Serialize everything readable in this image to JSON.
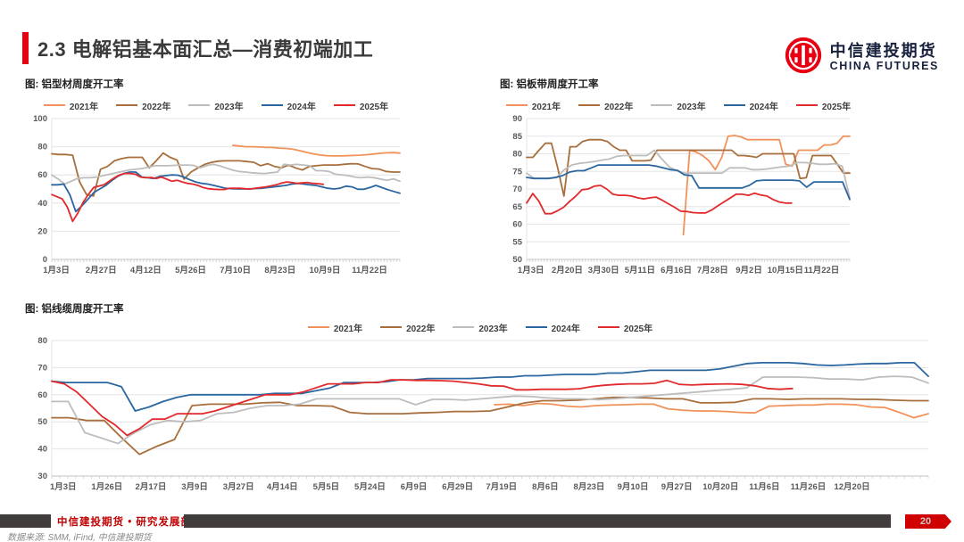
{
  "header": {
    "title": "2.3 电解铝基本面汇总—消费初端加工",
    "logo_cn": "中信建投期货",
    "logo_en": "CHINA FUTURES"
  },
  "footer": {
    "dept": "中信建投期货 • 研究发展部",
    "source": "数据来源: SMM, iFind, 中信建投期货",
    "page": "20"
  },
  "colors": {
    "y2021": "#F0925A",
    "y2022": "#A86E3B",
    "y2023": "#BDBDBD",
    "y2024": "#2A66A0",
    "y2025": "#E2292B",
    "grid": "#E4E4E4",
    "axis": "#C2C2C2",
    "tick": "#C9C9C9",
    "label": "#595959"
  },
  "chart_data": [
    {
      "type": "line",
      "title": "图: 铝型材周度开工率",
      "ylim": [
        0,
        100
      ],
      "y_ticks": [
        0,
        20,
        40,
        60,
        80,
        100
      ],
      "legend_position": "top",
      "x_labels": [
        "1月3日",
        "2月27日",
        "4月12日",
        "5月26日",
        "7月10日",
        "8月23日",
        "10月9日",
        "11月22日"
      ],
      "series": [
        {
          "name": "2021年",
          "color": "y2021",
          "x0": 0.52,
          "x1": 1.0,
          "values": [
            81,
            80.5,
            80,
            80,
            79.8,
            79.5,
            79.5,
            79,
            78.8,
            78.2,
            77.2,
            76,
            75,
            74.2,
            73.7,
            73.5,
            73.5,
            73.6,
            73.8,
            74,
            74.3,
            74.8,
            75.3,
            75.7,
            75.8,
            75.5
          ]
        },
        {
          "name": "2022年",
          "color": "y2022",
          "x0": 0,
          "x1": 1.0,
          "values": [
            75,
            74.5,
            74.5,
            74,
            55,
            46,
            45,
            64,
            66,
            70,
            71.5,
            72.5,
            72.5,
            72.5,
            65,
            70,
            75.5,
            72.5,
            70.5,
            57,
            62,
            65,
            67.5,
            69,
            69.8,
            70,
            70,
            70,
            69.5,
            69,
            66.5,
            68,
            66,
            65,
            67,
            65,
            63.5,
            66,
            66.5,
            67,
            67,
            67,
            67.5,
            68,
            67.8,
            66,
            64.5,
            64.2,
            62.5,
            62,
            62
          ]
        },
        {
          "name": "2023年",
          "color": "y2023",
          "x0": 0,
          "x1": 1.0,
          "values": [
            60,
            57,
            53.5,
            55.5,
            57.5,
            58,
            58,
            58.5,
            59.5,
            60.5,
            61.5,
            62.5,
            63.5,
            64,
            64.5,
            65.5,
            66.5,
            66.5,
            66.5,
            66.8,
            67,
            67,
            66.8,
            65,
            66.5,
            67.5,
            66.5,
            65,
            63.5,
            62.5,
            62,
            61.5,
            61.2,
            61,
            61.5,
            62,
            67.5,
            67,
            67.5,
            67,
            66.5,
            63,
            63,
            62.5,
            60.5,
            60,
            59.5,
            58.5,
            58,
            58.5,
            58,
            57,
            56.2,
            57.2,
            55.5
          ]
        },
        {
          "name": "2024年",
          "color": "y2024",
          "x0": 0,
          "x1": 1.0,
          "values": [
            53,
            53,
            53.5,
            46,
            34,
            38,
            42.5,
            47.5,
            50,
            52.5,
            56,
            59,
            61,
            62,
            62,
            58.5,
            58,
            57.5,
            59,
            59.5,
            60,
            59.8,
            58.5,
            56.5,
            55,
            54,
            53.5,
            52.5,
            51.5,
            50.5,
            50.2,
            50,
            50,
            50,
            50.3,
            50.5,
            51,
            51.5,
            52,
            52.5,
            53.5,
            54,
            53.5,
            53,
            52.5,
            51.5,
            50.5,
            50,
            50.5,
            52,
            51.5,
            49.8,
            49.8,
            51,
            52.5,
            51,
            49.5,
            48.2,
            47
          ]
        },
        {
          "name": "2025年",
          "color": "y2025",
          "x0": 0,
          "x1": 0.78,
          "values": [
            46,
            44.5,
            43,
            37,
            27,
            33,
            40.5,
            46,
            51,
            52,
            53,
            55.5,
            58,
            60,
            61,
            61,
            60.5,
            58.5,
            58,
            58.2,
            57.5,
            58.5,
            57,
            55.5,
            56.2,
            55,
            54,
            53.5,
            52.5,
            51,
            50.2,
            49.8,
            49.6,
            49.6,
            50.5,
            50.6,
            50.5,
            50.2,
            50,
            50.5,
            51,
            51.5,
            52.2,
            53,
            54.2,
            55,
            54.6,
            54,
            54.3,
            54.6,
            54,
            53.8,
            53.3
          ]
        }
      ]
    },
    {
      "type": "line",
      "title": "图: 铝板带周度开工率",
      "ylim": [
        50,
        90
      ],
      "y_ticks": [
        50,
        55,
        60,
        65,
        70,
        75,
        80,
        85,
        90
      ],
      "legend_position": "top",
      "x_labels": [
        "1月3日",
        "2月20日",
        "3月30日",
        "5月11日",
        "6月16日",
        "7月28日",
        "9月2日",
        "10月15日",
        "11月22日"
      ],
      "series": [
        {
          "name": "2021年",
          "color": "y2021",
          "x0": 0.485,
          "x1": 1.0,
          "values": [
            57,
            81,
            80.5,
            79.5,
            78,
            75.5,
            79,
            85,
            85.2,
            84.8,
            84,
            84,
            84,
            84,
            84,
            84,
            77,
            76.5,
            81,
            81,
            81,
            81,
            82.5,
            82.5,
            83,
            85,
            85
          ]
        },
        {
          "name": "2022年",
          "color": "y2022",
          "x0": 0,
          "x1": 1.0,
          "values": [
            79,
            79,
            81,
            83,
            83,
            76,
            68,
            82,
            82,
            83.5,
            84,
            84,
            84,
            83.5,
            82,
            81,
            81,
            78,
            78,
            78,
            78.2,
            81,
            81,
            81,
            81,
            81,
            81,
            81,
            81,
            81,
            81,
            81,
            81,
            81,
            79.5,
            79.5,
            79.3,
            79,
            80,
            80,
            80,
            80,
            80,
            80,
            73,
            73.2,
            79.5,
            79.5,
            79.5,
            79.5,
            77,
            74.5,
            74.5
          ]
        },
        {
          "name": "2023年",
          "color": "y2023",
          "x0": 0,
          "x1": 1.0,
          "values": [
            74.5,
            73,
            73,
            73,
            73.2,
            75.5,
            76.8,
            77.3,
            77.5,
            77.8,
            78.2,
            78.5,
            79.3,
            79.5,
            79.5,
            79.5,
            79.5,
            81,
            78.5,
            76.2,
            75.2,
            74.5,
            74.5,
            74.5,
            74.5,
            74.5,
            74.5,
            76,
            76,
            76,
            75.5,
            75.5,
            75.7,
            76,
            76.3,
            76.5,
            77.5,
            77.5,
            77.3,
            77,
            77,
            77.2,
            76.5,
            67.5
          ]
        },
        {
          "name": "2024年",
          "color": "y2024",
          "x0": 0,
          "x1": 1.0,
          "values": [
            73.3,
            73,
            73,
            73,
            73.3,
            73.8,
            74.8,
            75.2,
            75.2,
            76,
            76.8,
            76.8,
            76.8,
            76.8,
            76.8,
            76.8,
            76.8,
            76.8,
            76.5,
            76,
            75.5,
            75.3,
            74,
            73.8,
            70.3,
            70.3,
            70.3,
            70.3,
            70.3,
            70.3,
            70.3,
            71,
            72.3,
            72.5,
            72.5,
            72.5,
            72.5,
            72.5,
            72.3,
            70.5,
            72,
            72,
            72,
            72,
            72,
            67
          ]
        },
        {
          "name": "2025年",
          "color": "y2025",
          "x0": 0,
          "x1": 0.82,
          "values": [
            66,
            68.7,
            66.5,
            63,
            63,
            63.8,
            64.8,
            66.5,
            68,
            69.8,
            70,
            70.8,
            71,
            70,
            68.5,
            68.2,
            68.2,
            68,
            67.5,
            67.2,
            67.5,
            67.7,
            66.8,
            65.8,
            64.8,
            63.7,
            63.6,
            63.3,
            63.2,
            63.2,
            64,
            65.2,
            66.3,
            67.4,
            68.5,
            68.5,
            68.2,
            68.8,
            68.3,
            68,
            67,
            66.3,
            66,
            66
          ]
        }
      ]
    },
    {
      "type": "line",
      "title": "图: 铝线缆周度开工率",
      "ylim": [
        30,
        80
      ],
      "y_ticks": [
        30,
        40,
        50,
        60,
        70,
        80
      ],
      "legend_position": "top",
      "x_labels": [
        "1月3日",
        "1月26日",
        "2月17日",
        "3月9日",
        "3月27日",
        "4月14日",
        "5月5日",
        "5月24日",
        "6月9日",
        "6月29日",
        "7月19日",
        "8月6日",
        "8月23日",
        "9月10日",
        "9月27日",
        "10月20日",
        "11月6日",
        "11月26日",
        "12月20日"
      ],
      "series": [
        {
          "name": "2021年",
          "color": "y2021",
          "x0": 0.505,
          "x1": 1.0,
          "values": [
            56.3,
            56.5,
            56,
            56.8,
            56.5,
            55.8,
            55.5,
            56,
            56.2,
            56.3,
            56.5,
            56.5,
            54.8,
            54.3,
            54,
            54,
            53.8,
            53.5,
            53.3,
            55.8,
            56,
            56.2,
            56.2,
            56.5,
            56.5,
            56.3,
            55.5,
            55.3,
            53.5,
            51.5,
            53
          ]
        },
        {
          "name": "2022年",
          "color": "y2022",
          "x0": 0,
          "x1": 1.0,
          "values": [
            51.5,
            51.5,
            50.5,
            50.5,
            44,
            38,
            41,
            43.5,
            56,
            56.5,
            56.5,
            56.5,
            57,
            57.2,
            56,
            56,
            55.8,
            53.5,
            53,
            53,
            53,
            53.3,
            53.5,
            53.8,
            53.8,
            54,
            55.5,
            57,
            57.8,
            57.8,
            58,
            58.5,
            59,
            59,
            58.8,
            58.5,
            58.5,
            57,
            57,
            57.2,
            58.5,
            58.5,
            58.3,
            58.5,
            58.5,
            58.5,
            58.3,
            58.3,
            58,
            57.8,
            57.8
          ]
        },
        {
          "name": "2023年",
          "color": "y2023",
          "x0": 0,
          "x1": 1.0,
          "values": [
            57.5,
            57.5,
            46,
            44,
            42,
            46,
            49,
            50.5,
            50,
            50.5,
            53,
            53.5,
            55,
            56,
            56,
            56.5,
            58.5,
            58.5,
            58.5,
            58.5,
            58.5,
            58.5,
            56.3,
            58.3,
            58.3,
            58,
            58.5,
            59,
            59.5,
            59.3,
            58.8,
            58.5,
            58.5,
            58.2,
            58.5,
            59,
            59.5,
            60,
            60.5,
            61,
            61.5,
            62,
            62.5,
            66.5,
            66.5,
            66.5,
            66.3,
            65.8,
            65.8,
            65.5,
            66.5,
            66.8,
            66.5,
            64.3
          ]
        },
        {
          "name": "2024年",
          "color": "y2024",
          "x0": 0,
          "x1": 1.0,
          "values": [
            65,
            64.5,
            64.5,
            64.5,
            64.5,
            63,
            54,
            55.5,
            57.5,
            59,
            60,
            60,
            60,
            60,
            60,
            60,
            60.5,
            60.5,
            60.5,
            61.5,
            62.5,
            64.5,
            64.5,
            64.5,
            64.8,
            65.5,
            65.5,
            66,
            66,
            66,
            66,
            66.2,
            66.5,
            66.5,
            67,
            67,
            67.3,
            67.5,
            67.5,
            67.5,
            68,
            68,
            68.5,
            69,
            69,
            69,
            69,
            69,
            69.5,
            70.5,
            71.5,
            71.8,
            71.8,
            71.8,
            71.5,
            71,
            70.8,
            71,
            71.3,
            71.5,
            71.5,
            71.8,
            71.8,
            66.8
          ]
        },
        {
          "name": "2025年",
          "color": "y2025",
          "x0": 0,
          "x1": 0.845,
          "values": [
            65,
            64,
            61,
            56.5,
            52,
            49,
            45,
            47.5,
            51,
            51,
            53,
            53,
            53,
            54,
            55.5,
            57,
            58.5,
            60,
            60,
            60,
            61,
            62.5,
            64,
            64,
            64,
            64.5,
            64.5,
            65.5,
            65.5,
            65.3,
            65.3,
            65.2,
            65,
            64.5,
            64,
            63.3,
            63.2,
            61.8,
            61.8,
            62,
            62,
            62,
            62.2,
            63,
            63.5,
            63.8,
            64,
            64,
            64.2,
            65.3,
            63.8,
            63.6,
            63.8,
            63.9,
            64,
            63.8,
            63.3,
            62.3,
            62,
            62.3
          ]
        }
      ]
    }
  ]
}
